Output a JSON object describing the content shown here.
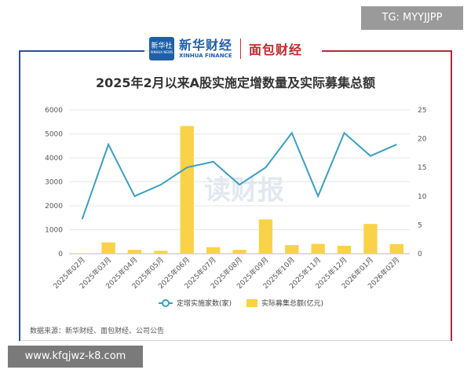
{
  "badges": {
    "tg": "TG: MYYJJPP",
    "url": "www.kfqjwz-k8.com"
  },
  "header": {
    "logo_box_line1": "新华社",
    "logo_box_line2": "XINHUA NEWS",
    "logo_cn": "新华财经",
    "logo_en": "XINHUA FINANCE",
    "brand2": "面包财经"
  },
  "colors": {
    "line": "#3a9fc2",
    "bar": "#f9d24a",
    "frame_left": "#2f4f8f",
    "frame_right": "#b02a37"
  },
  "chart_data": {
    "type": "bar",
    "title": "2025年2月以来A股实施定增数量及实际募集总额",
    "categories": [
      "2025年02月",
      "2025年03月",
      "2025年04月",
      "2025年05月",
      "2025年06月",
      "2025年07月",
      "2025年08月",
      "2025年09月",
      "2025年10月",
      "2025年11月",
      "2025年12月",
      "2026年01月",
      "2026年02月"
    ],
    "series": [
      {
        "name": "实际募集总额(亿元)",
        "type": "bar",
        "axis": "left",
        "values": [
          20,
          470,
          160,
          120,
          5330,
          270,
          160,
          1430,
          360,
          410,
          330,
          1240,
          400
        ]
      },
      {
        "name": "定增实施家数(家)",
        "type": "line",
        "axis": "right",
        "values": [
          6,
          19,
          10,
          12,
          15,
          16,
          12,
          15,
          21,
          10,
          21,
          17,
          19
        ]
      }
    ],
    "y_left": {
      "min": 0,
      "max": 6000,
      "ticks": [
        0,
        1000,
        2000,
        3000,
        4000,
        5000,
        6000
      ]
    },
    "y_right": {
      "min": 0,
      "max": 25,
      "ticks": [
        0,
        5,
        10,
        15,
        20,
        25
      ]
    },
    "grid": true,
    "legend_position": "bottom",
    "watermark": "读财报"
  },
  "footer": {
    "source": "数据来源：新华财经、面包财经、公司公告"
  }
}
